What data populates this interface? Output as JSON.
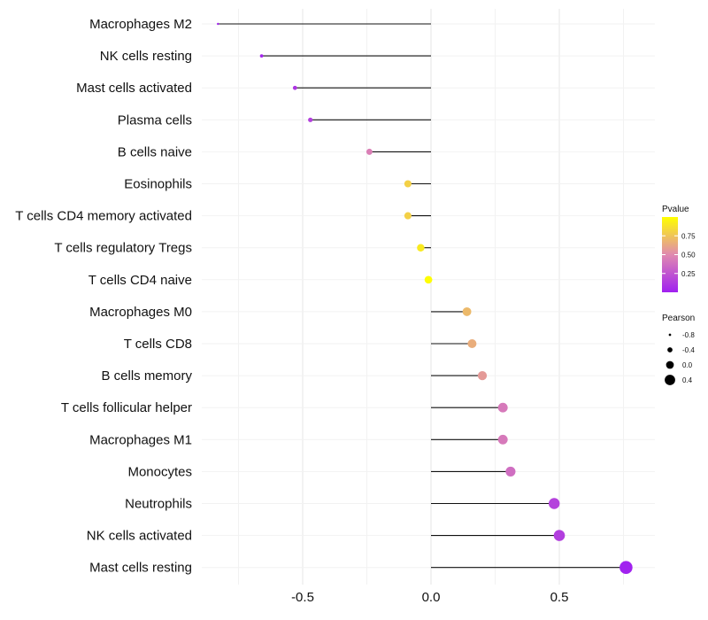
{
  "chart_data": {
    "type": "lollipop",
    "title": "",
    "xlabel": "",
    "ylabel": "",
    "xlim": [
      -0.84,
      0.8
    ],
    "x_ticks": [
      -0.5,
      0.0,
      0.5
    ],
    "x_tick_labels": [
      "-0.5",
      "0.0",
      "0.5"
    ],
    "grid": true,
    "series": [
      {
        "name": "Macrophages M2",
        "pearson": -0.83,
        "pvalue": 0.01
      },
      {
        "name": "NK cells resting",
        "pearson": -0.66,
        "pvalue": 0.03
      },
      {
        "name": "Mast cells activated",
        "pearson": -0.53,
        "pvalue": 0.1
      },
      {
        "name": "Plasma cells",
        "pearson": -0.47,
        "pvalue": 0.15
      },
      {
        "name": "B cells naive",
        "pearson": -0.24,
        "pvalue": 0.45
      },
      {
        "name": "Eosinophils",
        "pearson": -0.09,
        "pvalue": 0.8
      },
      {
        "name": "T cells CD4 memory activated",
        "pearson": -0.09,
        "pvalue": 0.8
      },
      {
        "name": "T cells regulatory  Tregs ",
        "pearson": -0.04,
        "pvalue": 0.91
      },
      {
        "name": "T cells CD4 naive",
        "pearson": -0.01,
        "pvalue": 0.99
      },
      {
        "name": "Macrophages M0",
        "pearson": 0.14,
        "pvalue": 0.7
      },
      {
        "name": "T cells CD8",
        "pearson": 0.16,
        "pvalue": 0.65
      },
      {
        "name": "B cells memory",
        "pearson": 0.2,
        "pvalue": 0.57
      },
      {
        "name": "T cells follicular helper",
        "pearson": 0.28,
        "pvalue": 0.42
      },
      {
        "name": "Macrophages M1",
        "pearson": 0.28,
        "pvalue": 0.42
      },
      {
        "name": "Monocytes",
        "pearson": 0.31,
        "pvalue": 0.37
      },
      {
        "name": "Neutrophils",
        "pearson": 0.48,
        "pvalue": 0.16
      },
      {
        "name": "NK cells activated",
        "pearson": 0.5,
        "pvalue": 0.14
      },
      {
        "name": "Mast cells resting",
        "pearson": 0.76,
        "pvalue": 0.01
      }
    ],
    "color_legend": {
      "title": "Pvalue",
      "range": [
        0,
        1
      ],
      "low_color": "#a020f0",
      "mid_color": "#e08ab0",
      "high_color": "#ffff00",
      "ticks": [
        0.25,
        0.5,
        0.75
      ],
      "tick_labels": [
        "0.25",
        "0.50",
        "0.75"
      ]
    },
    "size_legend": {
      "title": "Pearson",
      "values": [
        -0.8,
        -0.4,
        0.0,
        0.4
      ],
      "labels": [
        "-0.8",
        "-0.4",
        "0.0",
        "0.4"
      ]
    }
  }
}
